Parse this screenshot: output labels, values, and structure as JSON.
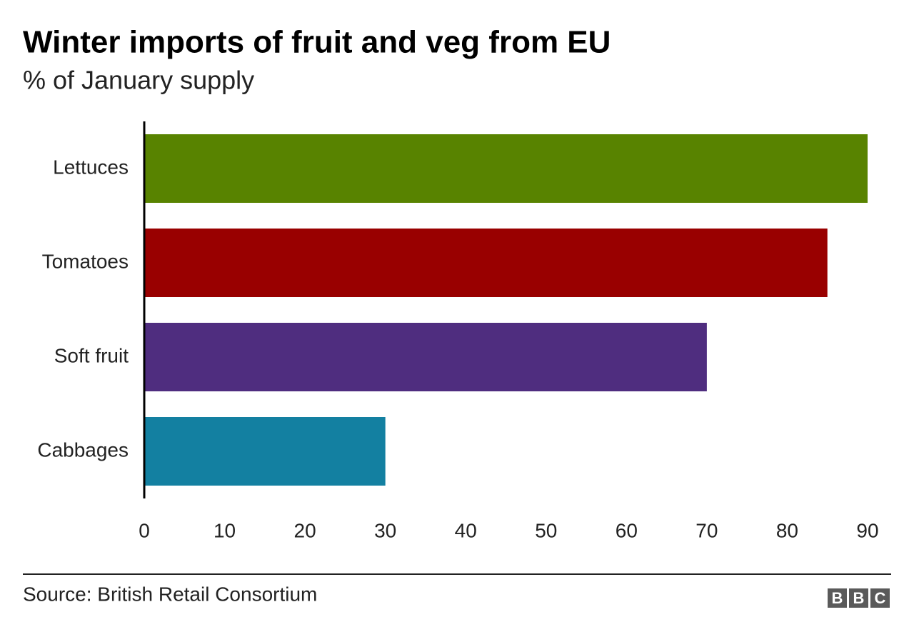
{
  "chart_data": {
    "type": "hbar",
    "title": "Winter imports of fruit and veg from EU",
    "subtitle": "% of January supply",
    "categories": [
      "Lettuces",
      "Tomatoes",
      "Soft fruit",
      "Cabbages"
    ],
    "values": [
      90,
      85,
      70,
      30
    ],
    "colors": [
      "#588300",
      "#990000",
      "#4f2d7f",
      "#1380a1"
    ],
    "xlim": [
      0,
      90
    ],
    "xticks": [
      0,
      10,
      20,
      30,
      40,
      50,
      60,
      70,
      80,
      90
    ],
    "grid": false,
    "source": "Source: British Retail Consortium",
    "logo": [
      "B",
      "B",
      "C"
    ]
  }
}
